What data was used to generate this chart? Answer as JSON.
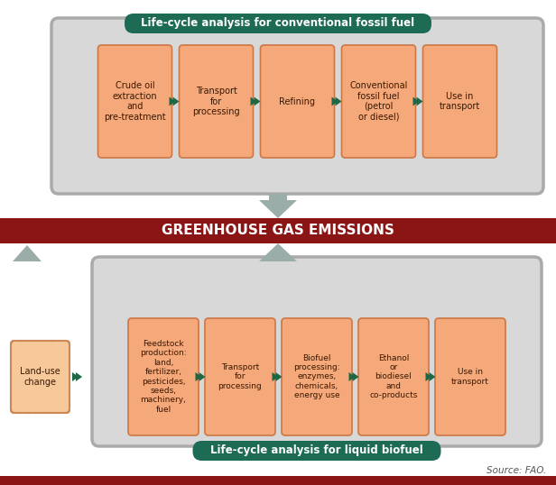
{
  "title_top": "Life-cycle analysis for conventional fossil fuel",
  "title_bottom": "Life-cycle analysis for liquid biofuel",
  "middle_banner": "GREENHOUSE GAS EMISSIONS",
  "source_text": "Source: FAO.",
  "top_boxes": [
    "Crude oil\nextraction\nand\npre-treatment",
    "Transport\nfor\nprocessing",
    "Refining",
    "Conventional\nfossil fuel\n(petrol\nor diesel)",
    "Use in\ntransport"
  ],
  "bottom_boxes": [
    "Feedstock\nproduction:\nland,\nfertilizer,\npesticides,\nseeds,\nmachinery,\nfuel",
    "Transport\nfor\nprocessing",
    "Biofuel\nprocessing:\nenzymes,\nchemicals,\nenergy use",
    "Ethanol\nor\nbiodiesel\nand\nco-products",
    "Use in\ntransport"
  ],
  "land_use_box": "Land-use\nchange",
  "box_fill": "#F5A87A",
  "land_use_fill": "#F7C99A",
  "box_edge_color": "#CC7744",
  "land_use_edge_color": "#CC8855",
  "top_frame_fill": "#D8D8D8",
  "top_frame_edge": "#AAAAAA",
  "bottom_frame_fill": "#D8D8D8",
  "bottom_frame_edge": "#AAAAAA",
  "title_bg": "#1E6B55",
  "title_text_color": "#FFFFFF",
  "banner_bg": "#8B1515",
  "banner_text_color": "#FFFFFF",
  "arrow_color": "#9AADA8",
  "small_arrow_color": "#1E6644",
  "upward_arrow_color": "#9AADA8",
  "fig_bg": "#FFFFFF",
  "border_bottom_color": "#8B1515"
}
